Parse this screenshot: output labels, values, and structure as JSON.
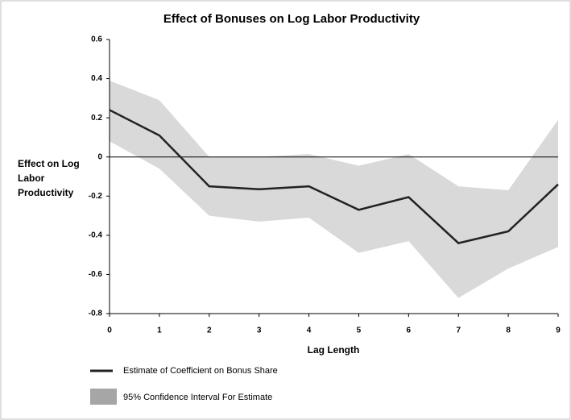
{
  "chart_data": {
    "type": "line",
    "title": "Effect of Bonuses on Log Labor Productivity",
    "x_label": "Lag Length",
    "y_label": "Effect on Log Labor Productivity",
    "x": [
      0,
      1,
      2,
      3,
      4,
      5,
      6,
      7,
      8,
      9
    ],
    "series": [
      {
        "name": "Estimate of Coefficient on Bonus Share",
        "color": "#222222",
        "values": [
          0.24,
          0.11,
          -0.15,
          -0.165,
          -0.15,
          -0.27,
          -0.205,
          -0.44,
          -0.38,
          -0.14
        ]
      }
    ],
    "band": {
      "name": "95% Confidence Interval For Estimate",
      "color": "#d9d9d9",
      "legend_color": "#a6a6a6",
      "upper": [
        0.39,
        0.29,
        0.0,
        0.0,
        0.015,
        -0.045,
        0.015,
        -0.15,
        -0.17,
        0.19
      ],
      "lower": [
        0.08,
        -0.06,
        -0.3,
        -0.33,
        -0.31,
        -0.49,
        -0.43,
        -0.72,
        -0.57,
        -0.46
      ]
    },
    "xlim": [
      0,
      9
    ],
    "xticks": [
      0,
      1,
      2,
      3,
      4,
      5,
      6,
      7,
      8,
      9
    ],
    "ylim": [
      -0.8,
      0.6
    ],
    "yticks": [
      0.6,
      0.4,
      0.2,
      0,
      -0.2,
      -0.4,
      -0.6,
      -0.8
    ]
  }
}
